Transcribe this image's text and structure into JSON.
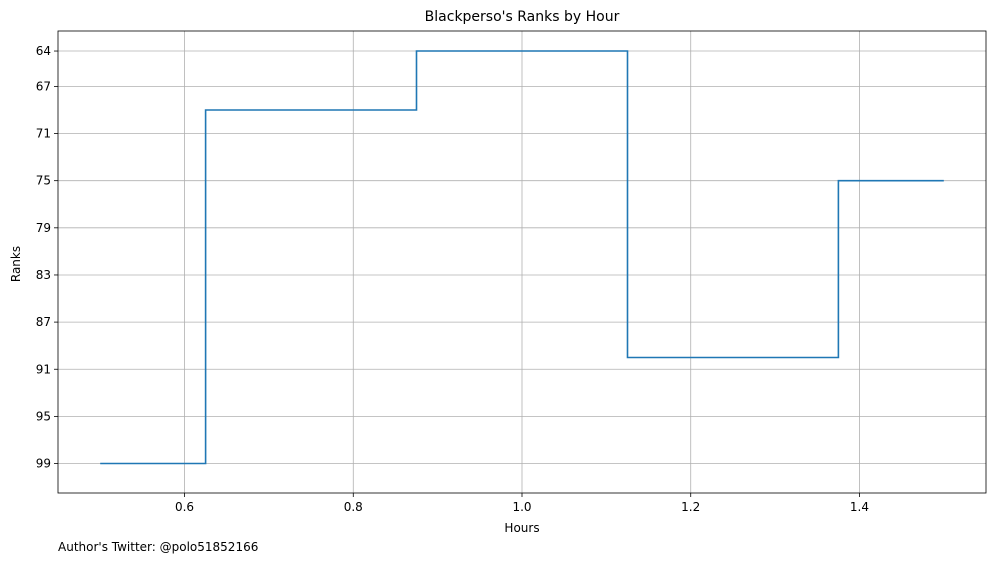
{
  "chart_data": {
    "type": "line",
    "drawstyle": "steps-mid",
    "title": "Blackperso's Ranks by Hour",
    "xlabel": "Hours",
    "ylabel": "Ranks",
    "x": [
      0.5,
      0.75,
      1.0,
      1.25,
      1.5
    ],
    "y": [
      99,
      69,
      64,
      90,
      75
    ],
    "xlim": [
      0.45,
      1.55
    ],
    "ylim": [
      101.5,
      62.3
    ],
    "y_inverted": true,
    "xticks": [
      0.6,
      0.8,
      1.0,
      1.2,
      1.4
    ],
    "xtick_labels": [
      "0.6",
      "0.8",
      "1.0",
      "1.2",
      "1.4"
    ],
    "yticks": [
      64,
      67,
      71,
      75,
      79,
      83,
      87,
      91,
      95,
      99
    ],
    "ytick_labels": [
      "64",
      "67",
      "71",
      "75",
      "79",
      "83",
      "87",
      "91",
      "95",
      "99"
    ],
    "grid": true,
    "line_color": "#1f77b4"
  },
  "footer": {
    "text": "Author's Twitter: @polo51852166"
  }
}
